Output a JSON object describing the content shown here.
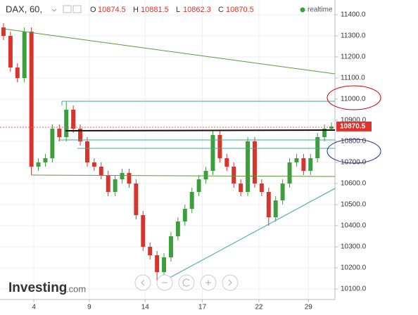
{
  "header": {
    "symbol": "DAX, 60,",
    "ohlc": [
      {
        "key": "O",
        "value": "10874.5"
      },
      {
        "key": "H",
        "value": "10881.5"
      },
      {
        "key": "L",
        "value": "10862.3"
      },
      {
        "key": "C",
        "value": "10870.5"
      }
    ],
    "realtime": "realtime"
  },
  "logo": {
    "main": "Investing",
    "suffix": ".com"
  },
  "chart_data": {
    "type": "candlestick",
    "up_color": "#3c9e3c",
    "down_color": "#d9342b",
    "opens": [
      11340,
      11300,
      11150,
      11100,
      11320,
      10680,
      10700,
      10720,
      10860,
      10820,
      10950,
      10860,
      10800,
      10700,
      10680,
      10640,
      10560,
      10620,
      10650,
      10600,
      10450,
      10300,
      10260,
      10180,
      10250,
      10350,
      10420,
      10480,
      10560,
      10620,
      10660,
      10830,
      10720,
      10680,
      10600,
      10560,
      10800,
      10600,
      10560,
      10440,
      10520,
      10600,
      10700,
      10720,
      10660,
      10720,
      10820,
      10860
    ],
    "highs": [
      11360,
      11320,
      11170,
      11340,
      11340,
      10720,
      10740,
      10880,
      10880,
      10990,
      10970,
      10880,
      10820,
      10720,
      10700,
      10660,
      10640,
      10670,
      10670,
      10620,
      10470,
      10320,
      10280,
      10270,
      10370,
      10440,
      10500,
      10580,
      10640,
      10680,
      10850,
      10850,
      10740,
      10700,
      10620,
      10820,
      10820,
      10620,
      10580,
      10540,
      10620,
      10720,
      10740,
      10740,
      10740,
      10840,
      10880,
      10890
    ],
    "lows": [
      11280,
      11130,
      11080,
      11080,
      10640,
      10660,
      10680,
      10700,
      10800,
      10800,
      10840,
      10780,
      10680,
      10660,
      10620,
      10540,
      10540,
      10600,
      10580,
      10430,
      10280,
      10240,
      10140,
      10160,
      10230,
      10330,
      10400,
      10460,
      10540,
      10600,
      10640,
      10700,
      10660,
      10580,
      10540,
      10540,
      10580,
      10540,
      10400,
      10420,
      10500,
      10580,
      10680,
      10640,
      10640,
      10700,
      10800,
      10850
    ],
    "closes": [
      11300,
      11150,
      11100,
      11320,
      10680,
      10700,
      10720,
      10860,
      10820,
      10950,
      10860,
      10800,
      10700,
      10680,
      10640,
      10560,
      10620,
      10650,
      10600,
      10450,
      10300,
      10260,
      10180,
      10250,
      10350,
      10420,
      10480,
      10560,
      10620,
      10660,
      10830,
      10720,
      10680,
      10600,
      10560,
      10800,
      10600,
      10560,
      10440,
      10520,
      10600,
      10700,
      10720,
      10660,
      10720,
      10820,
      10860,
      10870.5
    ],
    "last_label": "10870.5",
    "xlim": [
      0,
      48
    ],
    "xticks": [
      {
        "value": 4.85,
        "label": "4"
      },
      {
        "value": 12.8,
        "label": "9"
      },
      {
        "value": 20.8,
        "label": "14"
      },
      {
        "value": 29,
        "label": "17"
      },
      {
        "value": 37.1,
        "label": "22"
      },
      {
        "value": 44.2,
        "label": "29"
      }
    ],
    "ylim": [
      10050,
      11470
    ],
    "yticks": [
      {
        "value": 10100,
        "label": "10100.0"
      },
      {
        "value": 10200,
        "label": "10200.0"
      },
      {
        "value": 10300,
        "label": "10300.0"
      },
      {
        "value": 10400,
        "label": "10400.0"
      },
      {
        "value": 10500,
        "label": "10500.0"
      },
      {
        "value": 10600,
        "label": "10600.0"
      },
      {
        "value": 10700,
        "label": "10700.0"
      },
      {
        "value": 10800,
        "label": "10800.0"
      },
      {
        "value": 10900,
        "label": "10900.0"
      },
      {
        "value": 11000,
        "label": "11000.0"
      },
      {
        "value": 11100,
        "label": "11100.0"
      },
      {
        "value": 11200,
        "label": "11200.0"
      },
      {
        "value": 11300,
        "label": "11300.0"
      },
      {
        "value": 11400,
        "label": "11400.0"
      }
    ]
  }
}
